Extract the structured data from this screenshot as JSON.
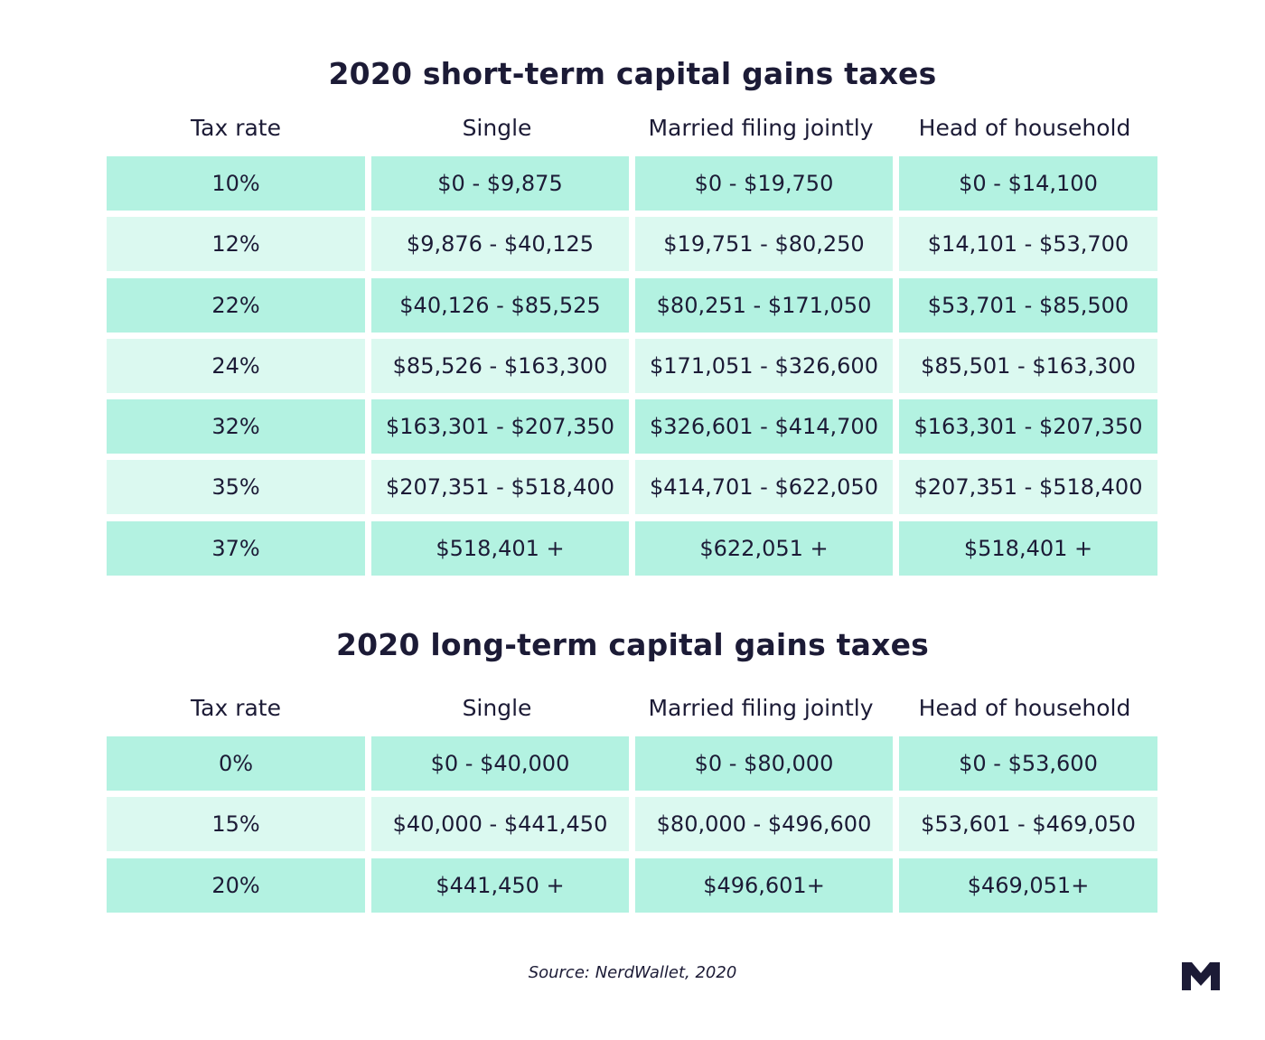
{
  "chart_data": [
    {
      "type": "table",
      "title": "2020 short-term capital gains taxes",
      "columns": [
        "Tax rate",
        "Single",
        "Married filing jointly",
        "Head of household"
      ],
      "rows": [
        [
          "10%",
          "$0 - $9,875",
          "$0 - $19,750",
          "$0 - $14,100"
        ],
        [
          "12%",
          "$9,876 - $40,125",
          "$19,751 - $80,250",
          "$14,101 - $53,700"
        ],
        [
          "22%",
          "$40,126 - $85,525",
          "$80,251 - $171,050",
          "$53,701 - $85,500"
        ],
        [
          "24%",
          "$85,526 - $163,300",
          "$171,051 - $326,600",
          "$85,501 - $163,300"
        ],
        [
          "32%",
          "$163,301 - $207,350",
          "$326,601 - $414,700",
          "$163,301 - $207,350"
        ],
        [
          "35%",
          "$207,351 - $518,400",
          "$414,701 - $622,050",
          "$207,351 - $518,400"
        ],
        [
          "37%",
          "$518,401 +",
          "$622,051 +",
          "$518,401 +"
        ]
      ]
    },
    {
      "type": "table",
      "title": "2020 long-term capital gains taxes",
      "columns": [
        "Tax rate",
        "Single",
        "Married filing jointly",
        "Head of household"
      ],
      "rows": [
        [
          "0%",
          "$0 - $40,000",
          "$0 - $80,000",
          "$0 - $53,600"
        ],
        [
          "15%",
          "$40,000 - $441,450",
          "$80,000 - $496,600",
          "$53,601 - $469,050"
        ],
        [
          "20%",
          "$441,450 +",
          "$496,601+",
          "$469,051+"
        ]
      ]
    }
  ],
  "source": "Source: NerdWallet, 2020",
  "colors": {
    "row_dark": "#b3f2e1",
    "row_light": "#dbf9f0",
    "text": "#1c1b36"
  },
  "logo": {
    "name": "m-logo-icon",
    "text": "M"
  }
}
